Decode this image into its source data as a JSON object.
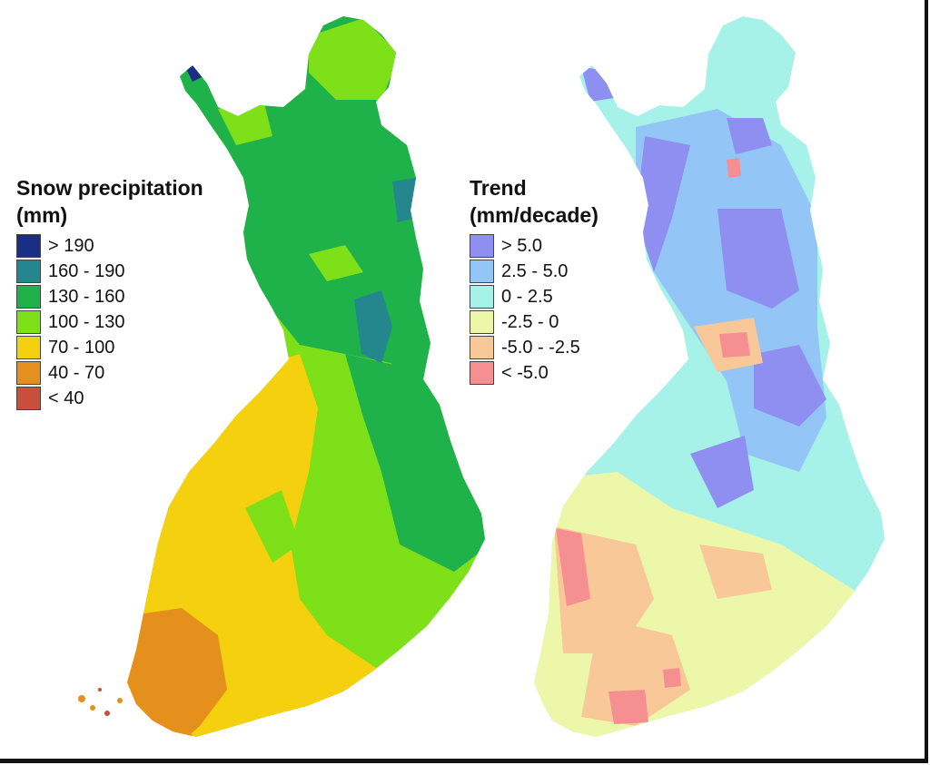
{
  "left_map": {
    "legend_title": "Snow precipitation\n(mm)",
    "legend": [
      {
        "label": "> 190",
        "color": "#1a2e86"
      },
      {
        "label": "160 - 190",
        "color": "#23878d"
      },
      {
        "label": "130 - 160",
        "color": "#1fb14a"
      },
      {
        "label": "100 - 130",
        "color": "#7ee018"
      },
      {
        "label": "70 - 100",
        "color": "#f5d00e"
      },
      {
        "label": "40 - 70",
        "color": "#e5901c"
      },
      {
        "label": "< 40",
        "color": "#c8503a"
      }
    ]
  },
  "right_map": {
    "legend_title": "Trend\n(mm/decade)",
    "legend": [
      {
        "label": "> 5.0",
        "color": "#8f8ff2"
      },
      {
        "label": "2.5 - 5.0",
        "color": "#93c6f7"
      },
      {
        "label": "0 - 2.5",
        "color": "#a6f2e8"
      },
      {
        "label": "-2.5 - 0",
        "color": "#edf7a9"
      },
      {
        "label": "-5.0 - -2.5",
        "color": "#f8c898"
      },
      {
        "label": "< -5.0",
        "color": "#f68f92"
      }
    ]
  }
}
